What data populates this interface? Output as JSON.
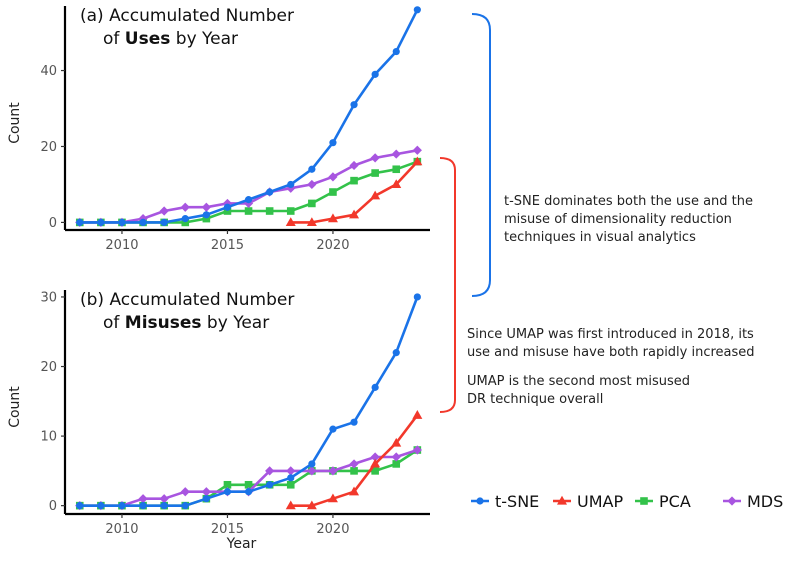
{
  "chart_data": [
    {
      "type": "line",
      "title_prefix": "(a) Accumulated Number",
      "title_line2_pre": "of ",
      "title_bold": "Uses",
      "title_line2_post": " by Year",
      "xlabel": "",
      "ylabel": "Count",
      "xlim": [
        2007.3,
        2024.6
      ],
      "ylim": [
        -2,
        57
      ],
      "xticks": [
        2010,
        2015,
        2020
      ],
      "yticks": [
        0,
        20,
        40
      ],
      "series": [
        {
          "name": "t-SNE",
          "x": [
            2008,
            2009,
            2010,
            2011,
            2012,
            2013,
            2014,
            2015,
            2016,
            2017,
            2018,
            2019,
            2020,
            2021,
            2022,
            2023,
            2024
          ],
          "values": [
            0,
            0,
            0,
            0,
            0,
            1,
            2,
            4,
            6,
            8,
            10,
            14,
            21,
            31,
            39,
            45,
            56
          ]
        },
        {
          "name": "UMAP",
          "x": [
            2018,
            2019,
            2020,
            2021,
            2022,
            2023,
            2024
          ],
          "values": [
            0,
            0,
            1,
            2,
            7,
            10,
            16
          ]
        },
        {
          "name": "PCA",
          "x": [
            2008,
            2009,
            2010,
            2011,
            2012,
            2013,
            2014,
            2015,
            2016,
            2017,
            2018,
            2019,
            2020,
            2021,
            2022,
            2023,
            2024
          ],
          "values": [
            0,
            0,
            0,
            0,
            0,
            0,
            1,
            3,
            3,
            3,
            3,
            5,
            8,
            11,
            13,
            14,
            16
          ]
        },
        {
          "name": "MDS",
          "x": [
            2008,
            2009,
            2010,
            2011,
            2012,
            2013,
            2014,
            2015,
            2016,
            2017,
            2018,
            2019,
            2020,
            2021,
            2022,
            2023,
            2024
          ],
          "values": [
            0,
            0,
            0,
            1,
            3,
            4,
            4,
            5,
            5,
            8,
            9,
            10,
            12,
            15,
            17,
            18,
            19
          ]
        }
      ]
    },
    {
      "type": "line",
      "title_prefix": "(b) Accumulated Number",
      "title_line2_pre": "of ",
      "title_bold": "Misuses",
      "title_line2_post": " by Year",
      "xlabel": "Year",
      "ylabel": "Count",
      "xlim": [
        2007.3,
        2024.6
      ],
      "ylim": [
        -1.2,
        31
      ],
      "xticks": [
        2010,
        2015,
        2020
      ],
      "yticks": [
        0,
        10,
        20,
        30
      ],
      "series": [
        {
          "name": "t-SNE",
          "x": [
            2008,
            2009,
            2010,
            2011,
            2012,
            2013,
            2014,
            2015,
            2016,
            2017,
            2018,
            2019,
            2020,
            2021,
            2022,
            2023,
            2024
          ],
          "values": [
            0,
            0,
            0,
            0,
            0,
            0,
            1,
            2,
            2,
            3,
            4,
            6,
            11,
            12,
            17,
            22,
            30
          ]
        },
        {
          "name": "UMAP",
          "x": [
            2018,
            2019,
            2020,
            2021,
            2022,
            2023,
            2024
          ],
          "values": [
            0,
            0,
            1,
            2,
            6,
            9,
            13
          ]
        },
        {
          "name": "PCA",
          "x": [
            2008,
            2009,
            2010,
            2011,
            2012,
            2013,
            2014,
            2015,
            2016,
            2017,
            2018,
            2019,
            2020,
            2021,
            2022,
            2023,
            2024
          ],
          "values": [
            0,
            0,
            0,
            0,
            0,
            0,
            1,
            3,
            3,
            3,
            3,
            5,
            5,
            5,
            5,
            6,
            8
          ]
        },
        {
          "name": "MDS",
          "x": [
            2008,
            2009,
            2010,
            2011,
            2012,
            2013,
            2014,
            2015,
            2016,
            2017,
            2018,
            2019,
            2020,
            2021,
            2022,
            2023,
            2024
          ],
          "values": [
            0,
            0,
            0,
            1,
            1,
            2,
            2,
            2,
            2,
            5,
            5,
            5,
            5,
            6,
            7,
            7,
            8
          ]
        }
      ]
    }
  ],
  "legend": {
    "items": [
      {
        "name": "t-SNE",
        "color": "#1a73e8",
        "marker": "circle"
      },
      {
        "name": "UMAP",
        "color": "#f2382b",
        "marker": "triangle"
      },
      {
        "name": "PCA",
        "color": "#33c24a",
        "marker": "square"
      },
      {
        "name": "MDS",
        "color": "#a855e0",
        "marker": "diamond"
      }
    ]
  },
  "colors": {
    "tsne": "#1a73e8",
    "umap": "#f2382b",
    "pca": "#33c24a",
    "mds": "#a855e0",
    "bracket_blue": "#1a73e8",
    "bracket_red": "#f2382b"
  },
  "annotations": {
    "tsne_note": [
      "t-SNE dominates both the use and the",
      "misuse of dimensionality reduction",
      "techniques in visual analytics"
    ],
    "umap_note_1": [
      "Since UMAP was first introduced in 2018, its",
      "use and misuse have both rapidly increased"
    ],
    "umap_note_2": [
      "UMAP is the second most misused",
      "DR technique overall"
    ]
  }
}
